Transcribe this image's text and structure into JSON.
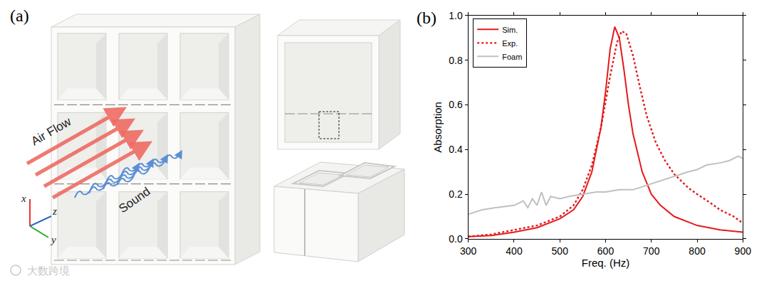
{
  "panel_a": {
    "label": "(a)",
    "air_flow": "Air Flow",
    "sound": "Sound",
    "axes": [
      "x",
      "z",
      "y"
    ]
  },
  "watermark": "大数跨境",
  "chart_data": {
    "type": "line",
    "panel_label": "(b)",
    "x_label": "Freq. (Hz)",
    "y_label": "Absorption",
    "xlim": [
      300,
      900
    ],
    "xticks": [
      300,
      400,
      500,
      600,
      700,
      800,
      900
    ],
    "ylim": [
      0,
      1.0
    ],
    "yticks": [
      {
        "value": 0,
        "label": "0.0"
      },
      {
        "value": 0.2,
        "label": "0.2"
      },
      {
        "value": 0.4,
        "label": "0.4"
      },
      {
        "value": 0.6,
        "label": "0.6"
      },
      {
        "value": 0.8,
        "label": "0.8"
      },
      {
        "value": 1.0,
        "label": "1.0"
      }
    ],
    "legend": "upper left",
    "grid": false,
    "series": [
      {
        "name": "Sim.",
        "color": "#e41a1c",
        "line_style": "solid",
        "x": [
          300,
          350,
          400,
          450,
          500,
          530,
          550,
          570,
          590,
          600,
          610,
          620,
          630,
          640,
          650,
          660,
          680,
          700,
          720,
          750,
          800,
          850,
          900
        ],
        "values": [
          0.01,
          0.015,
          0.03,
          0.05,
          0.09,
          0.13,
          0.19,
          0.3,
          0.5,
          0.66,
          0.85,
          0.95,
          0.9,
          0.76,
          0.6,
          0.47,
          0.3,
          0.2,
          0.15,
          0.1,
          0.06,
          0.04,
          0.03
        ]
      },
      {
        "name": "Exp.",
        "color": "#e41a1c",
        "line_style": "dotted",
        "x": [
          300,
          350,
          400,
          450,
          500,
          530,
          550,
          570,
          590,
          610,
          625,
          635,
          645,
          660,
          675,
          690,
          710,
          730,
          750,
          780,
          800,
          830,
          850,
          880,
          900
        ],
        "values": [
          0.01,
          0.02,
          0.04,
          0.06,
          0.1,
          0.15,
          0.22,
          0.33,
          0.5,
          0.73,
          0.88,
          0.93,
          0.92,
          0.82,
          0.68,
          0.55,
          0.43,
          0.35,
          0.29,
          0.23,
          0.2,
          0.16,
          0.13,
          0.1,
          0.07
        ]
      },
      {
        "name": "Foam",
        "color": "#c0c0c0",
        "line_style": "solid",
        "x": [
          300,
          330,
          360,
          400,
          420,
          430,
          440,
          450,
          460,
          470,
          480,
          500,
          520,
          550,
          580,
          600,
          630,
          660,
          690,
          720,
          750,
          780,
          800,
          820,
          850,
          870,
          890,
          900
        ],
        "values": [
          0.11,
          0.13,
          0.14,
          0.15,
          0.17,
          0.14,
          0.18,
          0.15,
          0.21,
          0.15,
          0.19,
          0.18,
          0.19,
          0.2,
          0.21,
          0.21,
          0.22,
          0.22,
          0.24,
          0.26,
          0.28,
          0.3,
          0.31,
          0.33,
          0.34,
          0.35,
          0.37,
          0.36
        ]
      }
    ]
  }
}
